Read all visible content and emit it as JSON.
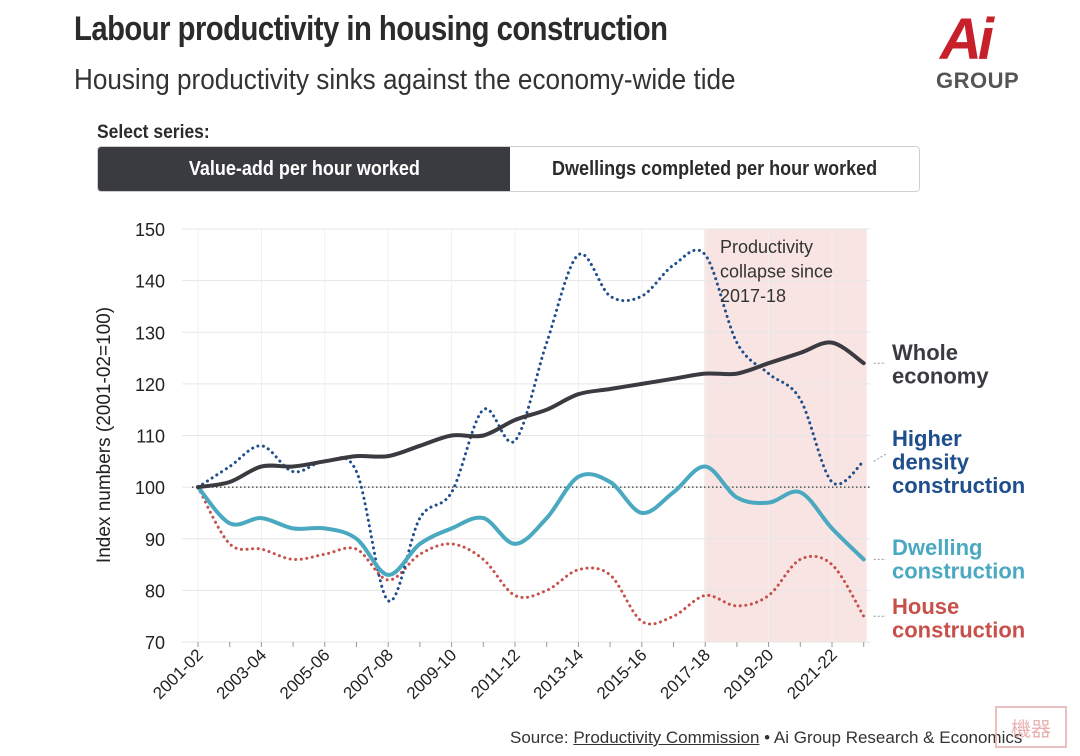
{
  "header": {
    "title": "Labour productivity in housing construction",
    "subtitle": "Housing productivity sinks against the economy-wide tide"
  },
  "logo": {
    "mark": "Ai",
    "text": "GROUP"
  },
  "selector": {
    "label": "Select series:",
    "options": [
      "Value-add per hour worked",
      "Dwellings completed per hour worked"
    ],
    "selected": "Value-add per hour worked"
  },
  "source": {
    "prefix": "Source: ",
    "link": "Productivity Commission",
    "suffix": " • Ai Group Research & Economics"
  },
  "stamp": "機器",
  "colors": {
    "whole": "#3a3a40",
    "higher": "#1f4e8c",
    "dwelling": "#4aa9c0",
    "house": "#c8504a",
    "shade": "#f8e4e2"
  },
  "chart_data": {
    "type": "line",
    "ylabel": "Index numbers (2001-02=100)",
    "ylim": [
      70,
      150
    ],
    "yticks": [
      70,
      80,
      90,
      100,
      110,
      120,
      130,
      140,
      150
    ],
    "x": [
      "2001-02",
      "2002-03",
      "2003-04",
      "2004-05",
      "2005-06",
      "2006-07",
      "2007-08",
      "2008-09",
      "2009-10",
      "2010-11",
      "2011-12",
      "2012-13",
      "2013-14",
      "2014-15",
      "2015-16",
      "2016-17",
      "2017-18",
      "2018-19",
      "2019-20",
      "2020-21",
      "2021-22",
      "2022-23"
    ],
    "xticks": [
      "2001-02",
      "2003-04",
      "2005-06",
      "2007-08",
      "2009-10",
      "2011-12",
      "2013-14",
      "2015-16",
      "2017-18",
      "2019-20",
      "2021-22"
    ],
    "baseline": 100,
    "shaded_region": {
      "from": "2017-18",
      "to": "2022-23",
      "label": [
        "Productivity",
        "collapse since",
        "2017-18"
      ]
    },
    "series": [
      {
        "key": "whole",
        "name": "Whole economy",
        "label_lines": [
          "Whole",
          "economy"
        ],
        "style": "solid",
        "values": [
          100,
          101,
          104,
          104,
          105,
          106,
          106,
          108,
          110,
          110,
          113,
          115,
          118,
          119,
          120,
          121,
          122,
          122,
          124,
          126,
          128,
          124
        ]
      },
      {
        "key": "higher",
        "name": "Higher density construction",
        "label_lines": [
          "Higher",
          "density",
          "construction"
        ],
        "style": "dotted",
        "values": [
          100,
          104,
          108,
          103,
          105,
          103,
          78,
          94,
          99,
          115,
          109,
          128,
          145,
          137,
          137,
          143,
          145,
          128,
          122,
          117,
          101,
          105
        ]
      },
      {
        "key": "dwelling",
        "name": "Dwelling construction",
        "label_lines": [
          "Dwelling",
          "construction"
        ],
        "style": "solid",
        "values": [
          100,
          93,
          94,
          92,
          92,
          90,
          83,
          89,
          92,
          94,
          89,
          94,
          102,
          101,
          95,
          99,
          104,
          98,
          97,
          99,
          92,
          86
        ]
      },
      {
        "key": "house",
        "name": "House construction",
        "label_lines": [
          "House",
          "construction"
        ],
        "style": "dotted",
        "values": [
          100,
          89,
          88,
          86,
          87,
          88,
          82,
          87,
          89,
          86,
          79,
          80,
          84,
          83,
          74,
          75,
          79,
          77,
          79,
          86,
          85,
          75
        ]
      }
    ]
  }
}
